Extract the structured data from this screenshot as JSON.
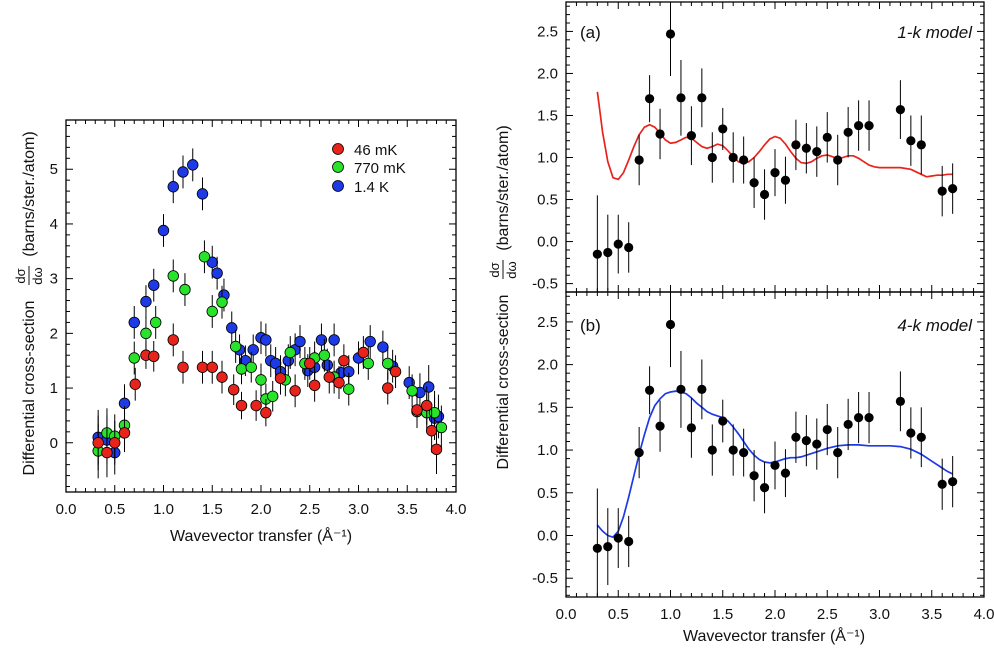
{
  "chart_data": [
    {
      "type": "scatter",
      "xlabel": "Wavevector transfer (Å⁻¹)",
      "ylabel_prefix": "Differential cross-section",
      "ylabel_symbol_num": "dσ",
      "ylabel_symbol_den": "dω",
      "ylabel_units": "(barns/ster./atom)",
      "xlim": [
        0.0,
        4.0
      ],
      "ylim": [
        -0.9,
        5.9
      ],
      "xticks": [
        "0.0",
        "0.5",
        "1.0",
        "1.5",
        "2.0",
        "2.5",
        "3.0",
        "3.5",
        "4.0"
      ],
      "yticks": [
        "0",
        "1",
        "2",
        "3",
        "4",
        "5"
      ],
      "legend_position": "top-right",
      "series": [
        {
          "name": "46 mK",
          "color": "#e8231b",
          "points": [
            [
              0.33,
              0.0,
              0.5
            ],
            [
              0.42,
              -0.18,
              0.45
            ],
            [
              0.5,
              0.0,
              0.4
            ],
            [
              0.6,
              0.18,
              0.35
            ],
            [
              0.71,
              1.07,
              0.3
            ],
            [
              0.82,
              1.6,
              0.25
            ],
            [
              0.9,
              1.58,
              0.28
            ],
            [
              1.1,
              1.88,
              0.3
            ],
            [
              1.2,
              1.38,
              0.3
            ],
            [
              1.4,
              1.38,
              0.3
            ],
            [
              1.5,
              1.38,
              0.3
            ],
            [
              1.6,
              1.2,
              0.3
            ],
            [
              1.72,
              0.97,
              0.28
            ],
            [
              1.8,
              0.68,
              0.25
            ],
            [
              1.95,
              0.68,
              0.28
            ],
            [
              2.05,
              0.55,
              0.25
            ],
            [
              2.2,
              1.18,
              0.3
            ],
            [
              2.35,
              0.95,
              0.3
            ],
            [
              2.5,
              1.45,
              0.3
            ],
            [
              2.55,
              1.05,
              0.3
            ],
            [
              2.7,
              1.2,
              0.3
            ],
            [
              2.8,
              1.1,
              0.3
            ],
            [
              2.85,
              1.5,
              0.3
            ],
            [
              3.05,
              1.65,
              0.3
            ],
            [
              3.3,
              1.0,
              0.3
            ],
            [
              3.38,
              1.3,
              0.3
            ],
            [
              3.6,
              0.6,
              0.3
            ],
            [
              3.7,
              0.68,
              0.35
            ],
            [
              3.75,
              0.22,
              0.4
            ],
            [
              3.8,
              -0.12,
              0.45
            ]
          ]
        },
        {
          "name": "770 mK",
          "color": "#27e32a",
          "points": [
            [
              0.33,
              -0.15,
              0.5
            ],
            [
              0.42,
              0.18,
              0.45
            ],
            [
              0.5,
              0.12,
              0.4
            ],
            [
              0.6,
              0.32,
              0.35
            ],
            [
              0.7,
              1.55,
              0.3
            ],
            [
              0.82,
              2.0,
              0.3
            ],
            [
              0.92,
              2.2,
              0.3
            ],
            [
              1.1,
              3.05,
              0.3
            ],
            [
              1.22,
              2.8,
              0.3
            ],
            [
              1.42,
              3.4,
              0.3
            ],
            [
              1.5,
              2.4,
              0.3
            ],
            [
              1.6,
              2.57,
              0.3
            ],
            [
              1.74,
              1.76,
              0.3
            ],
            [
              1.8,
              1.35,
              0.28
            ],
            [
              1.9,
              1.38,
              0.28
            ],
            [
              2.0,
              1.15,
              0.3
            ],
            [
              2.05,
              0.8,
              0.28
            ],
            [
              2.12,
              0.85,
              0.28
            ],
            [
              2.25,
              1.15,
              0.3
            ],
            [
              2.3,
              1.65,
              0.3
            ],
            [
              2.45,
              1.45,
              0.3
            ],
            [
              2.55,
              1.55,
              0.3
            ],
            [
              2.65,
              1.6,
              0.3
            ],
            [
              2.75,
              1.2,
              0.3
            ],
            [
              2.9,
              0.98,
              0.3
            ],
            [
              3.1,
              1.45,
              0.3
            ],
            [
              3.3,
              1.45,
              0.3
            ],
            [
              3.55,
              0.95,
              0.3
            ],
            [
              3.6,
              0.57,
              0.3
            ],
            [
              3.7,
              0.55,
              0.35
            ],
            [
              3.78,
              0.55,
              0.4
            ],
            [
              3.85,
              0.28,
              0.4
            ]
          ]
        },
        {
          "name": "1.4 K",
          "color": "#1d3ae6",
          "points": [
            [
              0.33,
              0.1,
              0.5
            ],
            [
              0.42,
              0.05,
              0.45
            ],
            [
              0.5,
              -0.18,
              0.4
            ],
            [
              0.6,
              0.72,
              0.35
            ],
            [
              0.7,
              2.2,
              0.3
            ],
            [
              0.82,
              2.58,
              0.3
            ],
            [
              0.9,
              2.88,
              0.3
            ],
            [
              1.0,
              3.88,
              0.3
            ],
            [
              1.1,
              4.68,
              0.3
            ],
            [
              1.2,
              4.95,
              0.3
            ],
            [
              1.3,
              5.08,
              0.3
            ],
            [
              1.4,
              4.55,
              0.3
            ],
            [
              1.5,
              3.3,
              0.3
            ],
            [
              1.55,
              3.1,
              0.3
            ],
            [
              1.62,
              2.7,
              0.3
            ],
            [
              1.7,
              2.1,
              0.3
            ],
            [
              1.78,
              1.7,
              0.28
            ],
            [
              1.84,
              1.5,
              0.28
            ],
            [
              1.92,
              1.7,
              0.28
            ],
            [
              2.0,
              1.92,
              0.3
            ],
            [
              2.05,
              1.88,
              0.3
            ],
            [
              2.1,
              1.5,
              0.3
            ],
            [
              2.15,
              1.45,
              0.3
            ],
            [
              2.2,
              1.3,
              0.3
            ],
            [
              2.28,
              1.5,
              0.3
            ],
            [
              2.35,
              1.7,
              0.3
            ],
            [
              2.4,
              1.85,
              0.3
            ],
            [
              2.48,
              1.32,
              0.3
            ],
            [
              2.55,
              1.38,
              0.3
            ],
            [
              2.62,
              1.88,
              0.3
            ],
            [
              2.68,
              1.42,
              0.3
            ],
            [
              2.75,
              1.88,
              0.3
            ],
            [
              2.82,
              1.28,
              0.3
            ],
            [
              2.9,
              1.3,
              0.3
            ],
            [
              3.0,
              1.55,
              0.3
            ],
            [
              3.12,
              1.85,
              0.3
            ],
            [
              3.25,
              1.75,
              0.3
            ],
            [
              3.35,
              1.4,
              0.3
            ],
            [
              3.52,
              1.1,
              0.3
            ],
            [
              3.63,
              0.92,
              0.35
            ],
            [
              3.72,
              1.02,
              0.4
            ],
            [
              3.78,
              0.45,
              0.4
            ],
            [
              3.82,
              0.48,
              0.4
            ]
          ]
        }
      ]
    },
    {
      "type": "scatter",
      "panel_label": "(a)",
      "model_label_parts": [
        "1-",
        "k",
        " model"
      ],
      "xlim": [
        0.0,
        4.0
      ],
      "ylim": [
        -0.6,
        2.85
      ],
      "yticks": [
        "-0.5",
        "0.0",
        "0.5",
        "1.0",
        "1.5",
        "2.0",
        "2.5"
      ],
      "model_color": "#e8231b",
      "model_curve": [
        [
          0.3,
          1.78
        ],
        [
          0.35,
          1.3
        ],
        [
          0.4,
          0.95
        ],
        [
          0.45,
          0.76
        ],
        [
          0.5,
          0.74
        ],
        [
          0.55,
          0.82
        ],
        [
          0.6,
          0.97
        ],
        [
          0.65,
          1.13
        ],
        [
          0.7,
          1.27
        ],
        [
          0.75,
          1.36
        ],
        [
          0.8,
          1.39
        ],
        [
          0.85,
          1.36
        ],
        [
          0.9,
          1.29
        ],
        [
          0.95,
          1.21
        ],
        [
          1.0,
          1.17
        ],
        [
          1.05,
          1.18
        ],
        [
          1.1,
          1.21
        ],
        [
          1.15,
          1.24
        ],
        [
          1.2,
          1.23
        ],
        [
          1.25,
          1.18
        ],
        [
          1.3,
          1.13
        ],
        [
          1.35,
          1.11
        ],
        [
          1.4,
          1.13
        ],
        [
          1.45,
          1.16
        ],
        [
          1.5,
          1.14
        ],
        [
          1.55,
          1.08
        ],
        [
          1.6,
          1.01
        ],
        [
          1.65,
          0.95
        ],
        [
          1.7,
          0.93
        ],
        [
          1.75,
          0.95
        ],
        [
          1.8,
          1.0
        ],
        [
          1.85,
          1.07
        ],
        [
          1.9,
          1.15
        ],
        [
          1.95,
          1.22
        ],
        [
          2.0,
          1.25
        ],
        [
          2.05,
          1.23
        ],
        [
          2.1,
          1.16
        ],
        [
          2.15,
          1.07
        ],
        [
          2.2,
          0.99
        ],
        [
          2.25,
          0.94
        ],
        [
          2.3,
          0.93
        ],
        [
          2.35,
          0.95
        ],
        [
          2.4,
          0.99
        ],
        [
          2.45,
          1.02
        ],
        [
          2.5,
          1.03
        ],
        [
          2.55,
          1.01
        ],
        [
          2.6,
          0.98
        ],
        [
          2.65,
          1.0
        ],
        [
          2.7,
          1.02
        ],
        [
          2.75,
          1.02
        ],
        [
          2.8,
          0.99
        ],
        [
          2.85,
          0.95
        ],
        [
          2.9,
          0.91
        ],
        [
          2.95,
          0.89
        ],
        [
          3.0,
          0.88
        ],
        [
          3.1,
          0.88
        ],
        [
          3.2,
          0.88
        ],
        [
          3.3,
          0.86
        ],
        [
          3.4,
          0.8
        ],
        [
          3.45,
          0.77
        ],
        [
          3.5,
          0.78
        ],
        [
          3.55,
          0.79
        ],
        [
          3.6,
          0.79
        ],
        [
          3.65,
          0.8
        ],
        [
          3.7,
          0.8
        ]
      ]
    },
    {
      "type": "scatter",
      "panel_label": "(b)",
      "model_label_parts": [
        "4-",
        "k",
        " model"
      ],
      "xlabel": "Wavevector transfer (Å⁻¹)",
      "xlim": [
        0.0,
        4.0
      ],
      "ylim": [
        -0.72,
        2.85
      ],
      "xticks": [
        "0.0",
        "0.5",
        "1.0",
        "1.5",
        "2.0",
        "2.5",
        "3.0",
        "3.5",
        "4.0"
      ],
      "yticks": [
        "-0.5",
        "0.0",
        "0.5",
        "1.0",
        "1.5",
        "2.0",
        "2.5"
      ],
      "model_color": "#1d3ae6",
      "model_curve": [
        [
          0.3,
          0.12
        ],
        [
          0.35,
          0.05
        ],
        [
          0.4,
          0.0
        ],
        [
          0.45,
          -0.02
        ],
        [
          0.5,
          0.05
        ],
        [
          0.55,
          0.22
        ],
        [
          0.6,
          0.45
        ],
        [
          0.65,
          0.7
        ],
        [
          0.7,
          0.95
        ],
        [
          0.75,
          1.18
        ],
        [
          0.8,
          1.38
        ],
        [
          0.85,
          1.52
        ],
        [
          0.9,
          1.6
        ],
        [
          0.95,
          1.66
        ],
        [
          1.0,
          1.68
        ],
        [
          1.05,
          1.69
        ],
        [
          1.1,
          1.68
        ],
        [
          1.15,
          1.66
        ],
        [
          1.2,
          1.61
        ],
        [
          1.25,
          1.55
        ],
        [
          1.3,
          1.5
        ],
        [
          1.35,
          1.45
        ],
        [
          1.4,
          1.42
        ],
        [
          1.45,
          1.4
        ],
        [
          1.5,
          1.38
        ],
        [
          1.55,
          1.34
        ],
        [
          1.6,
          1.27
        ],
        [
          1.65,
          1.19
        ],
        [
          1.7,
          1.1
        ],
        [
          1.75,
          1.01
        ],
        [
          1.8,
          0.94
        ],
        [
          1.85,
          0.89
        ],
        [
          1.9,
          0.86
        ],
        [
          1.95,
          0.85
        ],
        [
          2.0,
          0.86
        ],
        [
          2.05,
          0.88
        ],
        [
          2.1,
          0.9
        ],
        [
          2.15,
          0.91
        ],
        [
          2.2,
          0.91
        ],
        [
          2.25,
          0.92
        ],
        [
          2.3,
          0.94
        ],
        [
          2.4,
          0.98
        ],
        [
          2.5,
          1.02
        ],
        [
          2.6,
          1.05
        ],
        [
          2.7,
          1.06
        ],
        [
          2.8,
          1.06
        ],
        [
          2.9,
          1.05
        ],
        [
          3.0,
          1.05
        ],
        [
          3.1,
          1.05
        ],
        [
          3.2,
          1.04
        ],
        [
          3.3,
          1.01
        ],
        [
          3.4,
          0.95
        ],
        [
          3.5,
          0.87
        ],
        [
          3.6,
          0.79
        ],
        [
          3.65,
          0.75
        ],
        [
          3.7,
          0.72
        ]
      ]
    },
    {
      "type": "scatter",
      "shared": "black data points in both right panels",
      "ylabel_prefix": "Differential cross-section",
      "ylabel_symbol_num": "dσ",
      "ylabel_symbol_den": "dω",
      "ylabel_units": "(barns/ster./atom)",
      "points_color": "#000000",
      "points": [
        [
          0.3,
          -0.15,
          0.7
        ],
        [
          0.4,
          -0.13,
          0.45
        ],
        [
          0.5,
          -0.03,
          0.35
        ],
        [
          0.6,
          -0.07,
          0.3
        ],
        [
          0.7,
          0.97,
          0.3
        ],
        [
          0.8,
          1.7,
          0.28
        ],
        [
          0.9,
          1.28,
          0.3
        ],
        [
          1.0,
          2.47,
          0.5
        ],
        [
          1.1,
          1.71,
          0.45
        ],
        [
          1.2,
          1.26,
          0.35
        ],
        [
          1.3,
          1.71,
          0.35
        ],
        [
          1.4,
          1.0,
          0.3
        ],
        [
          1.5,
          1.34,
          0.25
        ],
        [
          1.6,
          1.0,
          0.3
        ],
        [
          1.7,
          0.97,
          0.28
        ],
        [
          1.8,
          0.7,
          0.3
        ],
        [
          1.9,
          0.56,
          0.3
        ],
        [
          2.0,
          0.82,
          0.28
        ],
        [
          2.1,
          0.73,
          0.28
        ],
        [
          2.2,
          1.15,
          0.3
        ],
        [
          2.3,
          1.11,
          0.3
        ],
        [
          2.4,
          1.07,
          0.3
        ],
        [
          2.5,
          1.24,
          0.3
        ],
        [
          2.6,
          0.97,
          0.3
        ],
        [
          2.7,
          1.3,
          0.3
        ],
        [
          2.8,
          1.38,
          0.3
        ],
        [
          2.9,
          1.38,
          0.3
        ],
        [
          3.2,
          1.57,
          0.35
        ],
        [
          3.3,
          1.2,
          0.3
        ],
        [
          3.4,
          1.15,
          0.35
        ],
        [
          3.6,
          0.6,
          0.3
        ],
        [
          3.7,
          0.63,
          0.3
        ]
      ]
    }
  ]
}
